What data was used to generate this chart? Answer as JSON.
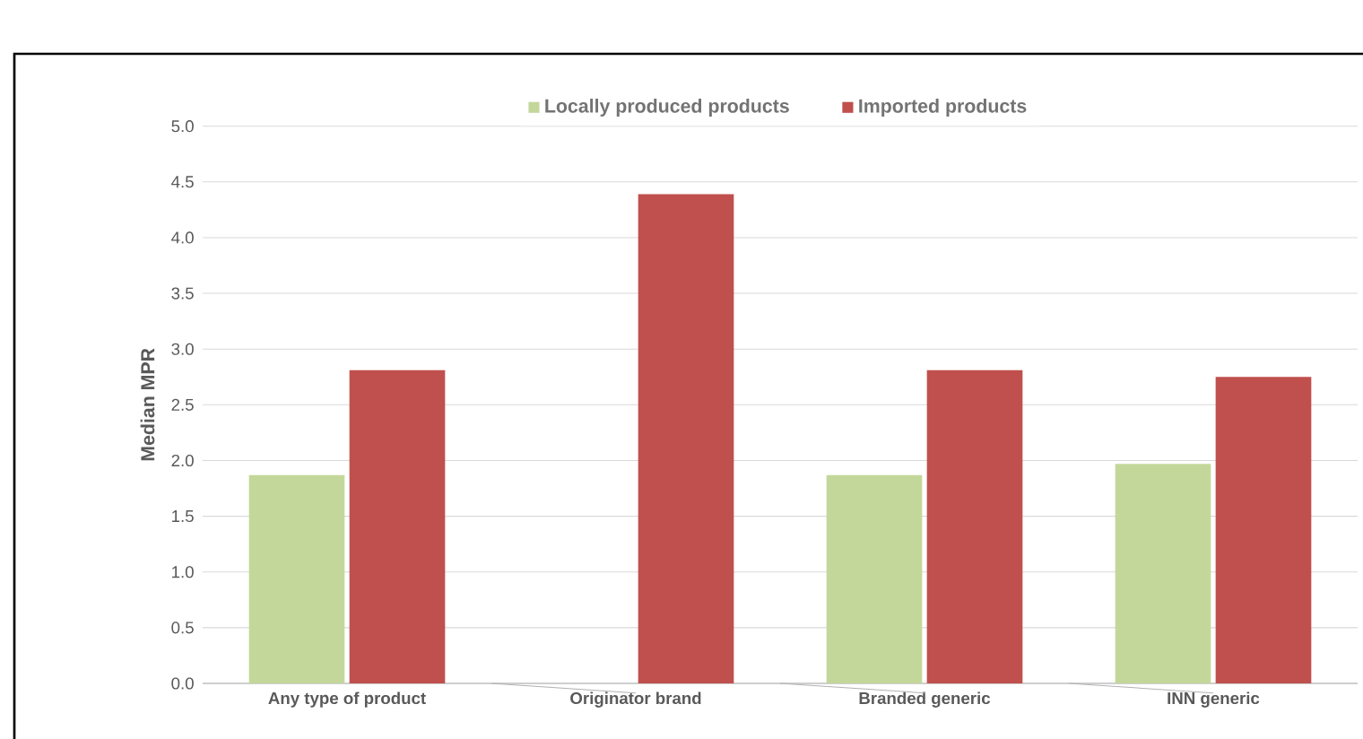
{
  "chart_data": {
    "type": "bar",
    "ylabel": "Median MPR",
    "categories": [
      "Any type of product",
      "Originator brand",
      "Branded generic",
      "INN generic"
    ],
    "series": [
      {
        "name": "Locally produced products",
        "color": "#c4d79b",
        "values": [
          1.87,
          null,
          1.87,
          1.97
        ]
      },
      {
        "name": "Imported products",
        "color": "#c0504d",
        "values": [
          2.81,
          4.39,
          2.81,
          2.75
        ]
      }
    ],
    "ylim": [
      0,
      5
    ],
    "yticks": [
      {
        "value": 0,
        "label": "0.0"
      },
      {
        "value": 0.5,
        "label": "0.5"
      },
      {
        "value": 1,
        "label": "1.0"
      },
      {
        "value": 1.5,
        "label": "1.5"
      },
      {
        "value": 2,
        "label": "2.0"
      },
      {
        "value": 2.5,
        "label": "2.5"
      },
      {
        "value": 3,
        "label": "3.0"
      },
      {
        "value": 3.5,
        "label": "3.5"
      },
      {
        "value": 4,
        "label": "4.0"
      },
      {
        "value": 4.5,
        "label": "4.5"
      },
      {
        "value": 5,
        "label": "5.0"
      }
    ],
    "grid": "y",
    "legend": "top"
  }
}
